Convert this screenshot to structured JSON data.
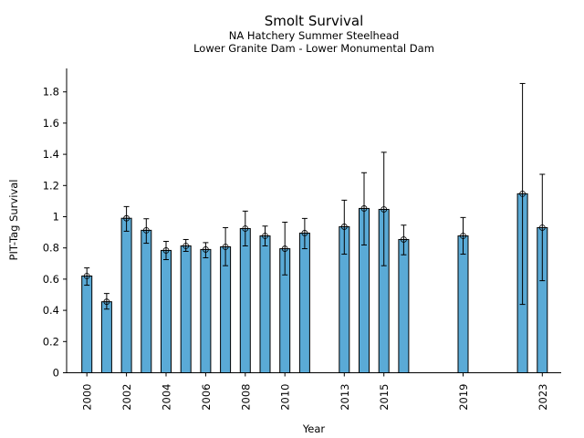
{
  "chart_data": {
    "type": "bar",
    "title": "Smolt Survival",
    "subtitle_lines": [
      "NA Hatchery Summer Steelhead",
      "Lower Granite Dam - Lower Monumental Dam"
    ],
    "xlabel": "Year",
    "ylabel": "PIT-Tag Survival",
    "ylim": [
      0,
      1.95
    ],
    "xlim": [
      1999.15,
      2024.0
    ],
    "yticks": [
      0,
      0.2,
      0.4,
      0.6,
      0.8,
      1,
      1.2,
      1.4,
      1.6,
      1.8
    ],
    "ytick_labels": [
      "0",
      "0.2",
      "0.4",
      "0.6",
      "0.8",
      "1",
      "1.2",
      "1.4",
      "1.6",
      "1.8"
    ],
    "xticks": [
      2000,
      2002,
      2004,
      2006,
      2008,
      2010,
      2013,
      2015,
      2019,
      2023
    ],
    "xtick_labels": [
      "2000",
      "2002",
      "2004",
      "2006",
      "2008",
      "2010",
      "2013",
      "2015",
      "2019",
      "2023"
    ],
    "grid": false,
    "bar_color": "#5aaad6",
    "edge_color": "#000000",
    "x": [
      2000,
      2001,
      2002,
      2003,
      2004,
      2005,
      2006,
      2007,
      2008,
      2009,
      2010,
      2011,
      2013,
      2014,
      2015,
      2016,
      2019,
      2022,
      2023
    ],
    "values": [
      0.62,
      0.455,
      0.99,
      0.913,
      0.784,
      0.813,
      0.79,
      0.807,
      0.924,
      0.877,
      0.795,
      0.895,
      0.936,
      1.053,
      1.047,
      0.854,
      0.877,
      1.147,
      0.93
    ],
    "error_lower": [
      0.561,
      0.408,
      0.907,
      0.83,
      0.725,
      0.778,
      0.737,
      0.686,
      0.813,
      0.813,
      0.627,
      0.795,
      0.76,
      0.819,
      0.686,
      0.756,
      0.76,
      0.438,
      0.59
    ],
    "error_upper": [
      0.672,
      0.508,
      1.065,
      0.987,
      0.842,
      0.854,
      0.834,
      0.93,
      1.036,
      0.94,
      0.965,
      0.989,
      1.106,
      1.282,
      1.413,
      0.946,
      0.995,
      1.854,
      1.272
    ]
  }
}
